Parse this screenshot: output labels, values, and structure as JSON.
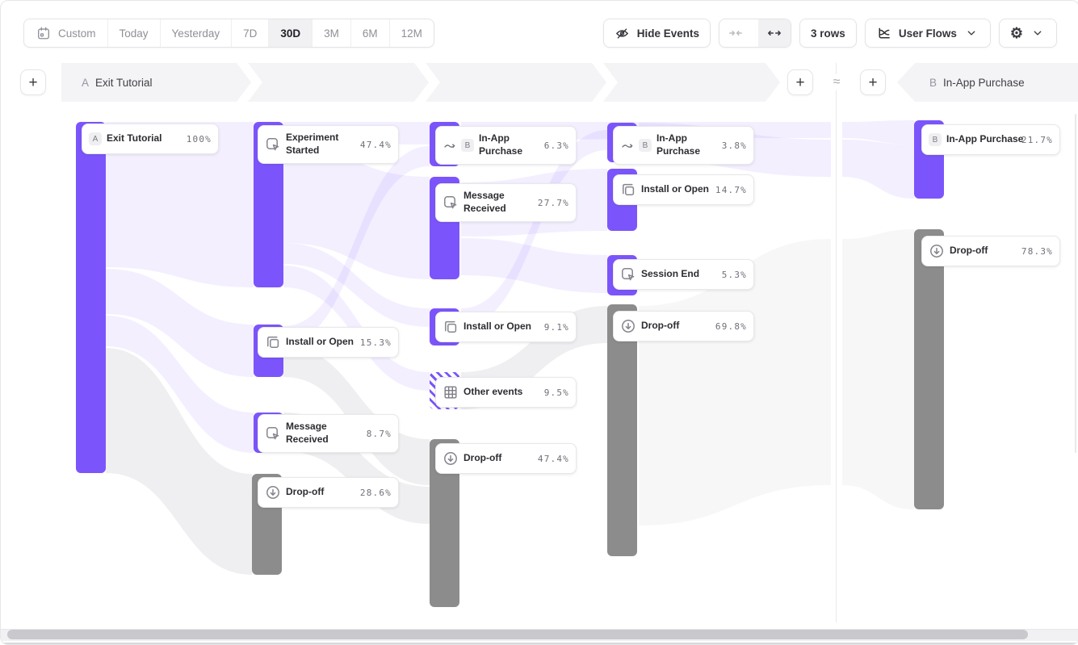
{
  "toolbar": {
    "date_ranges": {
      "options": [
        "Custom",
        "Today",
        "Yesterday",
        "7D",
        "30D",
        "3M",
        "6M",
        "12M"
      ],
      "selected": "30D"
    },
    "hide_events": "Hide Events",
    "rows": "3 rows",
    "view": "User Flows"
  },
  "header": {
    "start": {
      "badge": "A",
      "label": "Exit Tutorial"
    },
    "end": {
      "badge": "B",
      "label": "In-App Purchase"
    },
    "approx": "≈"
  },
  "colors": {
    "accent_purple": "#7b55fb",
    "dropoff_gray": "#8c8c8c",
    "ribbon_lavender": "#efecfb",
    "strip_gray": "#f4f4f6"
  },
  "flow": {
    "columns": [
      {
        "nodes": [
          {
            "label": "Exit Tutorial",
            "value": "100%",
            "badge": "A",
            "style": "purple"
          }
        ]
      },
      {
        "nodes": [
          {
            "label": "Experiment Started",
            "value": "47.4%",
            "icon": "event",
            "style": "purple"
          },
          {
            "label": "Install or Open",
            "value": "15.3%",
            "icon": "copy",
            "style": "purple"
          },
          {
            "label": "Message Received",
            "value": "8.7%",
            "icon": "event",
            "style": "purple"
          },
          {
            "label": "Drop-off",
            "value": "28.6%",
            "icon": "dropoff",
            "style": "gray"
          }
        ]
      },
      {
        "nodes": [
          {
            "label": "In-App Purchase",
            "value": "6.3%",
            "icon": "jump",
            "badge": "B",
            "style": "purple"
          },
          {
            "label": "Message Received",
            "value": "27.7%",
            "icon": "event",
            "style": "purple"
          },
          {
            "label": "Install or Open",
            "value": "9.1%",
            "icon": "copy",
            "style": "purple"
          },
          {
            "label": "Other events",
            "value": "9.5%",
            "icon": "grid",
            "style": "striped"
          },
          {
            "label": "Drop-off",
            "value": "47.4%",
            "icon": "dropoff",
            "style": "gray"
          }
        ]
      },
      {
        "nodes": [
          {
            "label": "In-App Purchase",
            "value": "3.8%",
            "icon": "jump",
            "badge": "B",
            "style": "purple"
          },
          {
            "label": "Install or Open",
            "value": "14.7%",
            "icon": "copy",
            "style": "purple"
          },
          {
            "label": "Session End",
            "value": "5.3%",
            "icon": "event",
            "style": "purple"
          },
          {
            "label": "Drop-off",
            "value": "69.8%",
            "icon": "dropoff",
            "style": "gray"
          }
        ]
      },
      {
        "nodes": [
          {
            "label": "In-App Purchase",
            "value": "21.7%",
            "badge": "B",
            "style": "purple"
          },
          {
            "label": "Drop-off",
            "value": "78.3%",
            "icon": "dropoff",
            "style": "gray"
          }
        ]
      }
    ]
  }
}
